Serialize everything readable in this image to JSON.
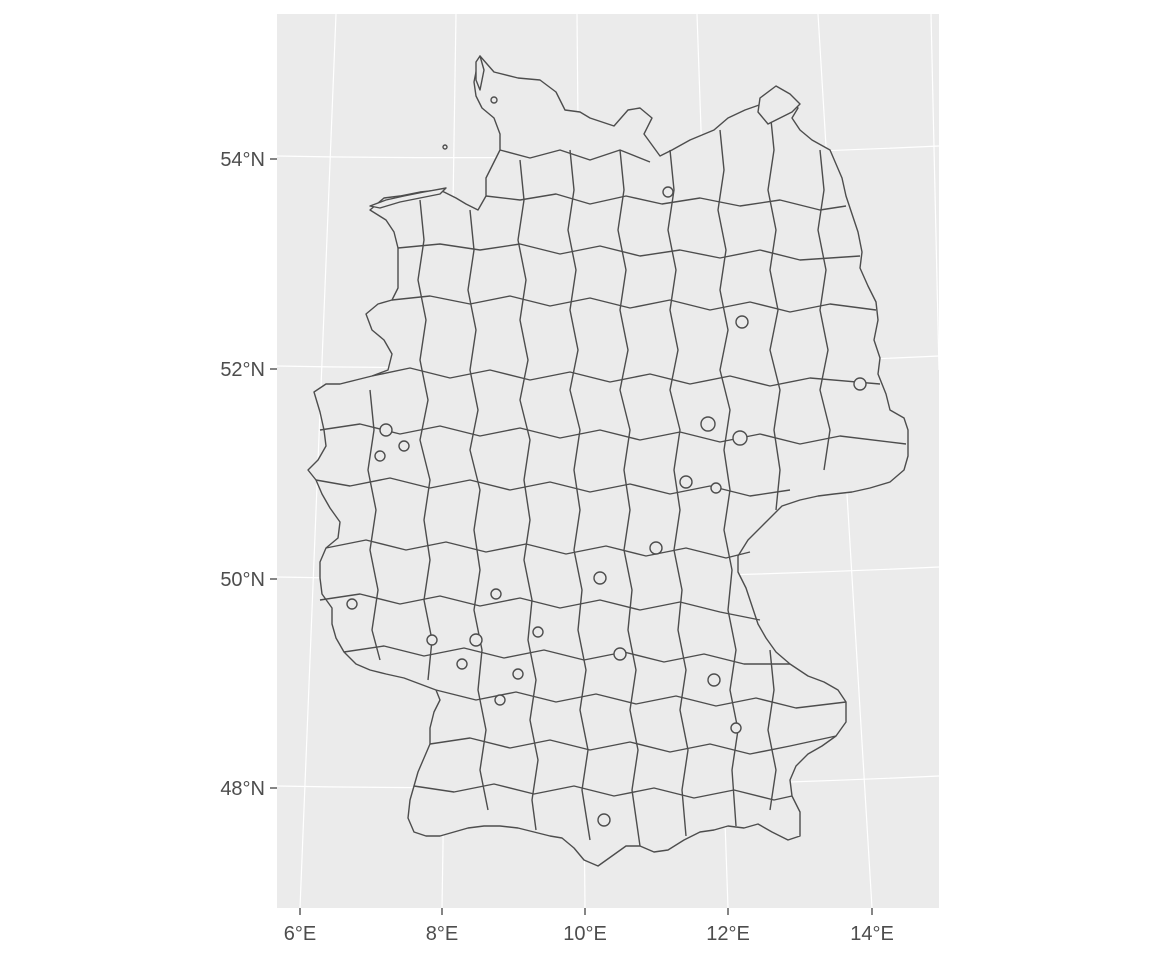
{
  "map": {
    "background_color": "#ebebeb",
    "graticule_color": "#ffffff",
    "border_color": "#4d4d4d",
    "fill_color": "#ebebeb",
    "longitude_range": [
      5.9,
      15.1
    ],
    "latitude_range": [
      47.2,
      55.1
    ],
    "y_axis_labels": [
      "54°N",
      "52°N",
      "50°N",
      "48°N"
    ],
    "x_axis_labels": [
      "6°E",
      "8°E",
      "10°E",
      "12°E",
      "14°E"
    ],
    "region_type": "district boundaries (Landkreise) of Germany"
  }
}
